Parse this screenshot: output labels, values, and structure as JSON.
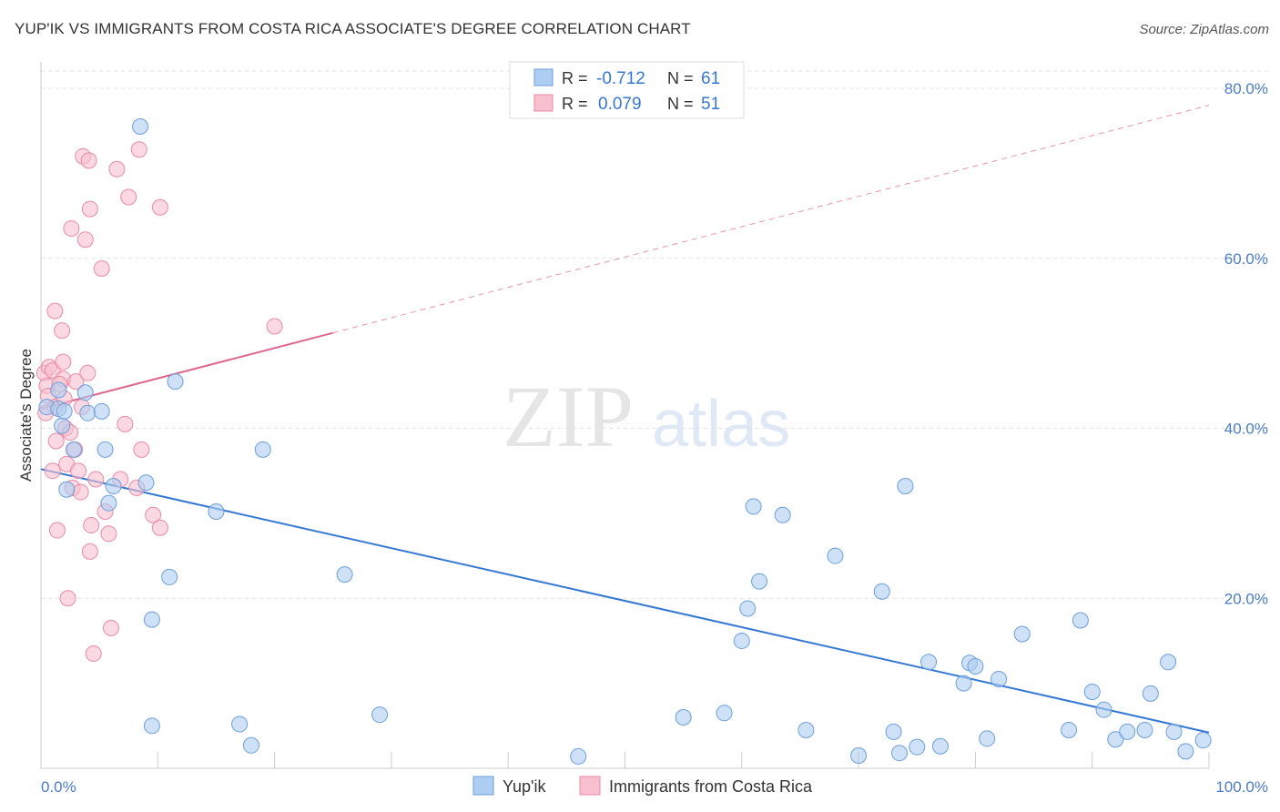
{
  "header": {
    "title": "YUP'IK VS IMMIGRANTS FROM COSTA RICA ASSOCIATE'S DEGREE CORRELATION CHART",
    "source": "Source: ZipAtlas.com"
  },
  "watermark": {
    "zip": "ZIP",
    "atlas": "atlas"
  },
  "colors": {
    "blue_fill": "#aecdf2",
    "blue_stroke": "#6c9fda",
    "blue_line": "#3578d4",
    "pink_fill": "#f8c0cf",
    "pink_stroke": "#e98aa6",
    "pink_line": "#e0668e",
    "axis_text": "#4a7cc7",
    "grid": "#e3e3e3"
  },
  "chart_data": {
    "type": "scatter",
    "title": "YUP'IK VS IMMIGRANTS FROM COSTA RICA ASSOCIATE'S DEGREE CORRELATION CHART",
    "xlabel": "",
    "ylabel": "Associate's Degree",
    "xlim": [
      0,
      100
    ],
    "ylim": [
      0,
      80
    ],
    "x_tick_labels": [
      "0.0%",
      "100.0%"
    ],
    "y_ticks": [
      20,
      40,
      60,
      80
    ],
    "y_tick_labels": [
      "20.0%",
      "40.0%",
      "60.0%",
      "80.0%"
    ],
    "grid": true,
    "legend_position": "top-center",
    "stats": [
      {
        "r_label": "R =",
        "r_value": "-0.712",
        "n_label": "N =",
        "n_value": "61"
      },
      {
        "r_label": "R =",
        "r_value": "0.079",
        "n_label": "N =",
        "n_value": "51"
      }
    ],
    "series": [
      {
        "name": "Yup'ik",
        "color": "blue",
        "trend": {
          "x0": 0,
          "y0": 35.2,
          "x1": 100,
          "y1": 4.2,
          "dashed_from": null
        },
        "points": [
          [
            0.5,
            42.5
          ],
          [
            1.5,
            42.3
          ],
          [
            1.5,
            44.5
          ],
          [
            1.8,
            40.3
          ],
          [
            2.0,
            42.0
          ],
          [
            2.2,
            32.8
          ],
          [
            2.8,
            37.5
          ],
          [
            3.8,
            44.2
          ],
          [
            4.0,
            41.8
          ],
          [
            5.2,
            42.0
          ],
          [
            5.5,
            37.5
          ],
          [
            5.8,
            31.2
          ],
          [
            6.2,
            33.2
          ],
          [
            8.5,
            75.5
          ],
          [
            9.0,
            33.6
          ],
          [
            9.5,
            17.5
          ],
          [
            9.5,
            5.0
          ],
          [
            11.0,
            22.5
          ],
          [
            11.5,
            45.5
          ],
          [
            15.0,
            30.2
          ],
          [
            17.0,
            5.2
          ],
          [
            18.0,
            2.7
          ],
          [
            19.0,
            37.5
          ],
          [
            26.0,
            22.8
          ],
          [
            29.0,
            6.3
          ],
          [
            46.0,
            1.4
          ],
          [
            55.0,
            6.0
          ],
          [
            58.5,
            6.5
          ],
          [
            60.0,
            15.0
          ],
          [
            60.5,
            18.8
          ],
          [
            61.0,
            30.8
          ],
          [
            61.5,
            22.0
          ],
          [
            63.5,
            29.8
          ],
          [
            65.5,
            4.5
          ],
          [
            68.0,
            25.0
          ],
          [
            70.0,
            1.5
          ],
          [
            72.0,
            20.8
          ],
          [
            73.0,
            4.3
          ],
          [
            73.5,
            1.8
          ],
          [
            74.0,
            33.2
          ],
          [
            75.0,
            2.5
          ],
          [
            76.0,
            12.5
          ],
          [
            77.0,
            2.6
          ],
          [
            79.0,
            10.0
          ],
          [
            79.5,
            12.4
          ],
          [
            80.0,
            12.0
          ],
          [
            81.0,
            3.5
          ],
          [
            82.0,
            10.5
          ],
          [
            84.0,
            15.8
          ],
          [
            88.0,
            4.5
          ],
          [
            89.0,
            17.4
          ],
          [
            90.0,
            9.0
          ],
          [
            91.0,
            6.9
          ],
          [
            92.0,
            3.4
          ],
          [
            93.0,
            4.3
          ],
          [
            94.5,
            4.5
          ],
          [
            95.0,
            8.8
          ],
          [
            96.5,
            12.5
          ],
          [
            97.0,
            4.3
          ],
          [
            98.0,
            2.0
          ],
          [
            99.5,
            3.3
          ]
        ]
      },
      {
        "name": "Immigrants from Costa Rica",
        "color": "pink",
        "trend": {
          "x0": 0,
          "y0": 42.3,
          "x1": 100,
          "y1": 78.0,
          "dashed_from": 25
        },
        "points": [
          [
            0.3,
            46.5
          ],
          [
            0.5,
            45.0
          ],
          [
            0.6,
            43.8
          ],
          [
            0.7,
            47.2
          ],
          [
            1.0,
            46.8
          ],
          [
            1.0,
            35.0
          ],
          [
            1.2,
            42.5
          ],
          [
            1.2,
            53.8
          ],
          [
            1.3,
            38.5
          ],
          [
            1.4,
            28.0
          ],
          [
            1.8,
            51.5
          ],
          [
            1.9,
            47.8
          ],
          [
            1.9,
            45.8
          ],
          [
            2.0,
            43.5
          ],
          [
            2.1,
            40.0
          ],
          [
            2.2,
            35.8
          ],
          [
            2.3,
            20.0
          ],
          [
            2.5,
            39.5
          ],
          [
            2.6,
            63.5
          ],
          [
            2.7,
            33.0
          ],
          [
            2.9,
            37.5
          ],
          [
            3.0,
            45.5
          ],
          [
            3.2,
            35.0
          ],
          [
            3.5,
            42.5
          ],
          [
            3.6,
            72.0
          ],
          [
            3.8,
            62.2
          ],
          [
            4.0,
            46.5
          ],
          [
            4.1,
            71.5
          ],
          [
            4.2,
            65.8
          ],
          [
            4.2,
            25.5
          ],
          [
            4.3,
            28.6
          ],
          [
            4.5,
            13.5
          ],
          [
            4.7,
            34.0
          ],
          [
            5.2,
            58.8
          ],
          [
            5.5,
            30.2
          ],
          [
            5.8,
            27.6
          ],
          [
            6.0,
            16.5
          ],
          [
            6.5,
            70.5
          ],
          [
            6.8,
            34.0
          ],
          [
            7.2,
            40.5
          ],
          [
            7.5,
            67.2
          ],
          [
            8.2,
            33.0
          ],
          [
            8.4,
            72.8
          ],
          [
            8.6,
            37.5
          ],
          [
            9.6,
            29.8
          ],
          [
            10.2,
            66.0
          ],
          [
            10.2,
            28.3
          ],
          [
            20.0,
            52.0
          ],
          [
            0.4,
            41.8
          ],
          [
            1.6,
            45.2
          ],
          [
            3.4,
            32.5
          ]
        ]
      }
    ]
  },
  "legend": {
    "items": [
      "Yup'ik",
      "Immigrants from Costa Rica"
    ]
  }
}
